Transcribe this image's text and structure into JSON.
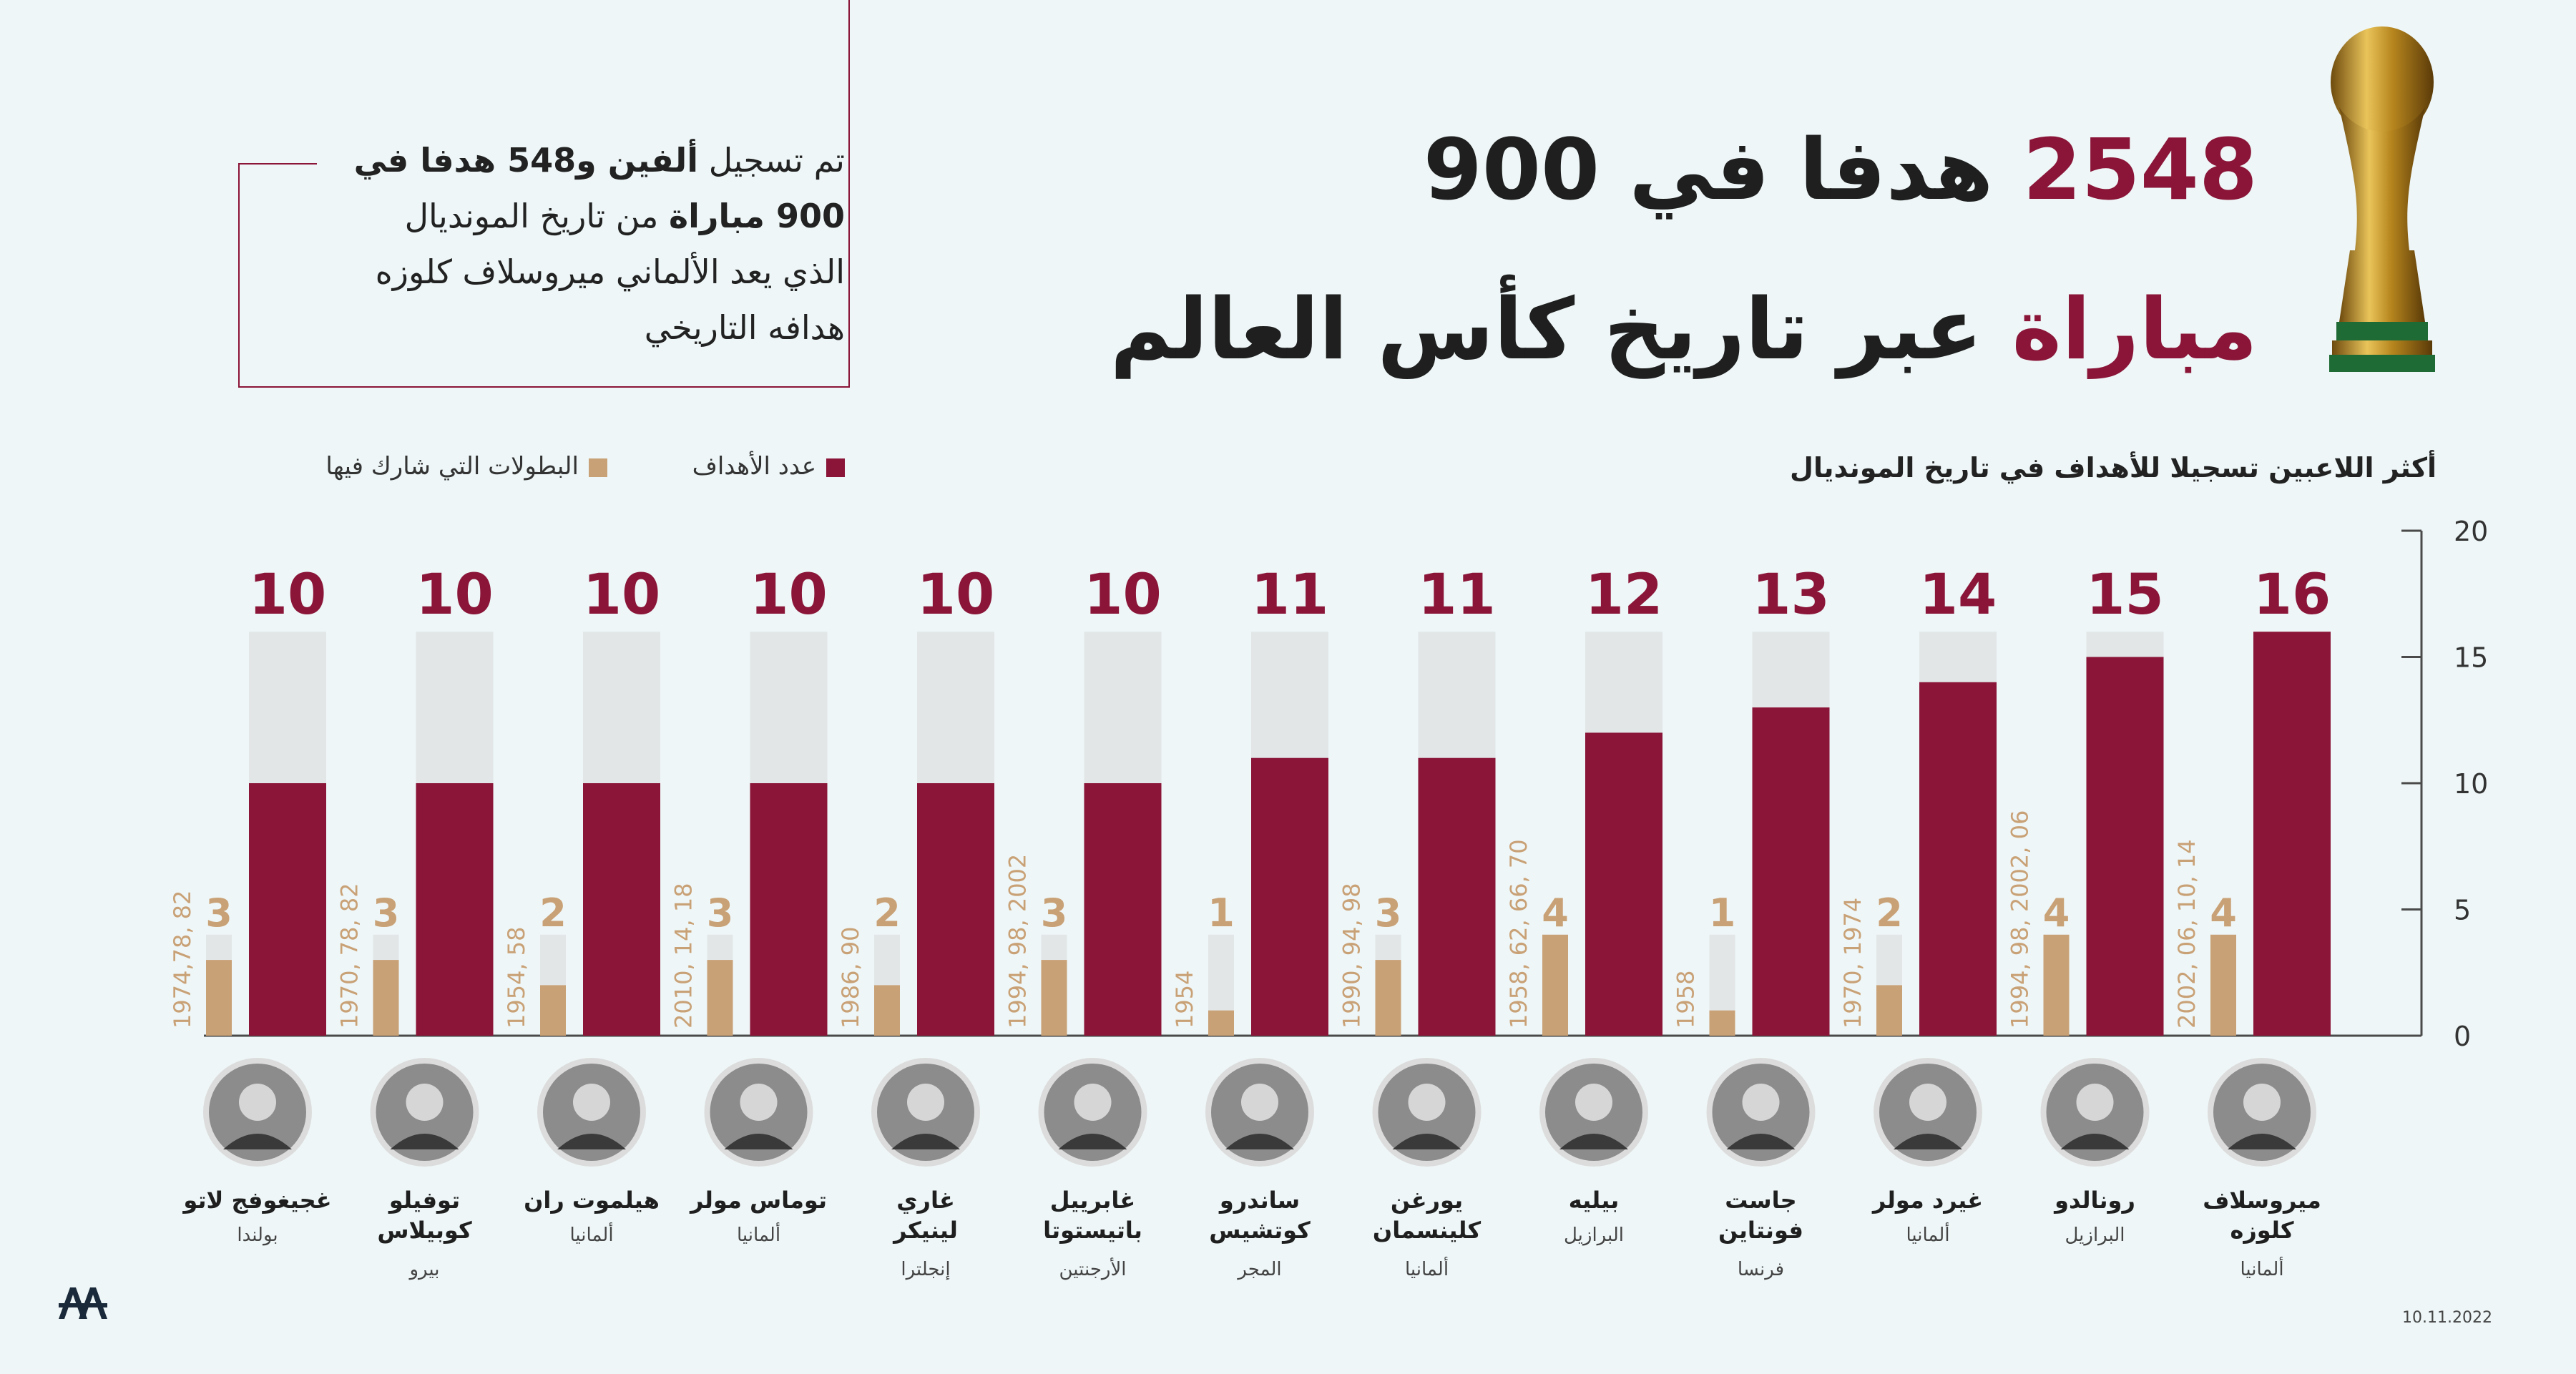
{
  "header": {
    "line1_number": "2548",
    "line1_rest": "هدفا في 900",
    "line2_accent": "مباراة",
    "line2_rest": "عبر تاريخ كأس العالم"
  },
  "intro": {
    "p1": "تم تسجيل ",
    "p1_bold": "ألفين و548 هدفا في",
    "p2_bold": "900 مباراة",
    "p2": " من تاريخ المونديال",
    "p3": "الذي يعد الألماني ميروسلاف كلوزه",
    "p4": "هدافه التاريخي"
  },
  "chart_subtitle": "أكثر اللاعبين تسجيلا للأهداف في تاريخ المونديال",
  "legend": {
    "goals_label": "عدد الأهداف",
    "tournaments_label": "البطولات التي شارك فيها"
  },
  "colors": {
    "goals": "#8a1538",
    "tournaments": "#c9a176",
    "track": "#e2e6e7",
    "background": "#eef6f7"
  },
  "footer": {
    "date": "10.11.2022",
    "logo_text": "AA"
  },
  "chart_data": {
    "type": "bar",
    "ylim": [
      0,
      20
    ],
    "yticks": [
      0,
      5,
      10,
      15,
      20
    ],
    "series": [
      {
        "name": "عدد الأهداف",
        "values": [
          16,
          15,
          14,
          13,
          12,
          11,
          11,
          10,
          10,
          10,
          10,
          10,
          10
        ]
      },
      {
        "name": "البطولات التي شارك فيها",
        "values": [
          4,
          4,
          2,
          1,
          4,
          3,
          1,
          3,
          2,
          3,
          2,
          3,
          3
        ]
      }
    ],
    "players": [
      {
        "name1": "ميروسلاف",
        "name2": "كلوزه",
        "country": "ألمانيا",
        "goals": 16,
        "tournaments": 4,
        "years": "2002, 06, 10, 14"
      },
      {
        "name1": "رونالدو",
        "name2": "",
        "country": "البرازيل",
        "goals": 15,
        "tournaments": 4,
        "years": "1994, 98, 2002, 06"
      },
      {
        "name1": "غيرد مولر",
        "name2": "",
        "country": "ألمانيا",
        "goals": 14,
        "tournaments": 2,
        "years": "1970, 1974"
      },
      {
        "name1": "جاست",
        "name2": "فونتاين",
        "country": "فرنسا",
        "goals": 13,
        "tournaments": 1,
        "years": "1958"
      },
      {
        "name1": "بيليه",
        "name2": "",
        "country": "البرازيل",
        "goals": 12,
        "tournaments": 4,
        "years": "1958, 62, 66, 70"
      },
      {
        "name1": "يورغن",
        "name2": "كلينسمان",
        "country": "ألمانيا",
        "goals": 11,
        "tournaments": 3,
        "years": "1990, 94, 98"
      },
      {
        "name1": "ساندرو",
        "name2": "كوتشيس",
        "country": "المجر",
        "goals": 11,
        "tournaments": 1,
        "years": "1954"
      },
      {
        "name1": "غابرييل",
        "name2": "باتيستوتا",
        "country": "الأرجنتين",
        "goals": 10,
        "tournaments": 3,
        "years": "1994, 98, 2002"
      },
      {
        "name1": "غاري",
        "name2": "لينيكر",
        "country": "إنجلترا",
        "goals": 10,
        "tournaments": 2,
        "years": "1986, 90"
      },
      {
        "name1": "توماس مولر",
        "name2": "",
        "country": "ألمانيا",
        "goals": 10,
        "tournaments": 3,
        "years": "2010, 14, 18"
      },
      {
        "name1": "هيلموت ران",
        "name2": "",
        "country": "ألمانيا",
        "goals": 10,
        "tournaments": 2,
        "years": "1954, 58"
      },
      {
        "name1": "توفيلو",
        "name2": "كوبيلاس",
        "country": "بيرو",
        "goals": 10,
        "tournaments": 3,
        "years": "1970, 78, 82"
      },
      {
        "name1": "غجيغوفج لاتو",
        "name2": "",
        "country": "بولندا",
        "goals": 10,
        "tournaments": 3,
        "years": "1974,78, 82"
      }
    ]
  }
}
